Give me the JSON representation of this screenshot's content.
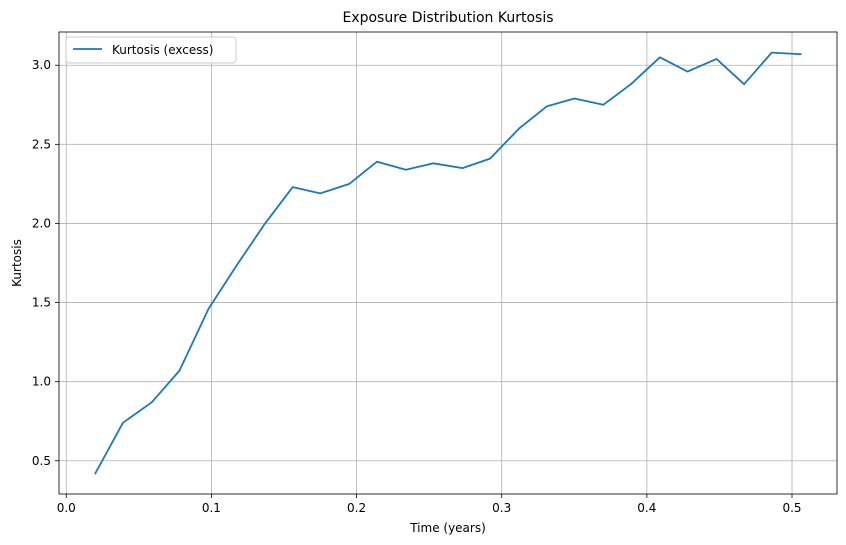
{
  "chart_data": {
    "type": "line",
    "title": "Exposure Distribution Kurtosis",
    "xlabel": "Time (years)",
    "ylabel": "Kurtosis",
    "xlim": [
      -0.005,
      0.531
    ],
    "ylim": [
      0.29,
      3.21
    ],
    "xticks": [
      0.0,
      0.1,
      0.2,
      0.3,
      0.4,
      0.5
    ],
    "xtick_labels": [
      "0.0",
      "0.1",
      "0.2",
      "0.3",
      "0.4",
      "0.5"
    ],
    "yticks": [
      0.5,
      1.0,
      1.5,
      2.0,
      2.5,
      3.0
    ],
    "ytick_labels": [
      "0.5",
      "1.0",
      "1.5",
      "2.0",
      "2.5",
      "3.0"
    ],
    "grid": true,
    "legend_position": "top-left",
    "series": [
      {
        "name": "Kurtosis (excess)",
        "color": "#1f77b4",
        "x": [
          0.02,
          0.039,
          0.059,
          0.078,
          0.098,
          0.117,
          0.137,
          0.156,
          0.175,
          0.195,
          0.214,
          0.234,
          0.253,
          0.273,
          0.292,
          0.312,
          0.331,
          0.35,
          0.37,
          0.389,
          0.409,
          0.428,
          0.448,
          0.467,
          0.486,
          0.506
        ],
        "y": [
          0.42,
          0.74,
          0.87,
          1.07,
          1.46,
          1.73,
          2.0,
          2.23,
          2.19,
          2.25,
          2.39,
          2.34,
          2.38,
          2.35,
          2.41,
          2.6,
          2.74,
          2.79,
          2.75,
          2.88,
          3.05,
          2.96,
          3.04,
          2.88,
          3.08,
          3.07
        ]
      }
    ]
  }
}
